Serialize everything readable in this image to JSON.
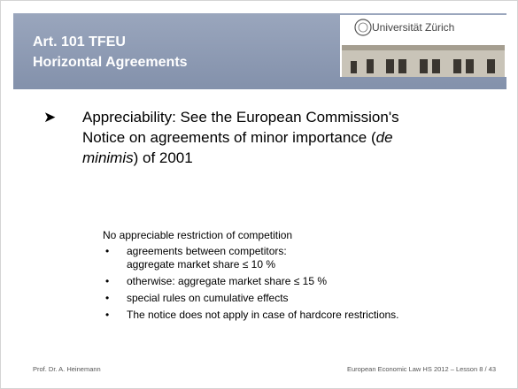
{
  "header": {
    "title_lines": [
      "Art. 101 TFEU",
      "Horizontal Agreements"
    ],
    "logo_text": "Universität Zürich"
  },
  "main_bullet": {
    "lines": [
      [
        {
          "text": "Appreciability: See the European Commission's"
        }
      ],
      [
        {
          "text": "Notice on agreements of minor importance ("
        },
        {
          "text": "de",
          "italic": true
        }
      ],
      [
        {
          "text": "minimis",
          "italic": true
        },
        {
          "text": ") of 2001"
        }
      ]
    ]
  },
  "sub": {
    "heading": "No appreciable restriction of competition",
    "items": [
      [
        "agreements between competitors:",
        "aggregate market share ≤ 10 %"
      ],
      [
        "otherwise: aggregate market share ≤ 15 %"
      ],
      [
        "special rules on cumulative effects"
      ],
      [
        "The notice does not apply in case of hardcore restrictions."
      ]
    ]
  },
  "footer": {
    "left": "Prof. Dr. A. Heinemann",
    "right": "European Economic Law HS 2012 – Lesson 8 / 43"
  }
}
